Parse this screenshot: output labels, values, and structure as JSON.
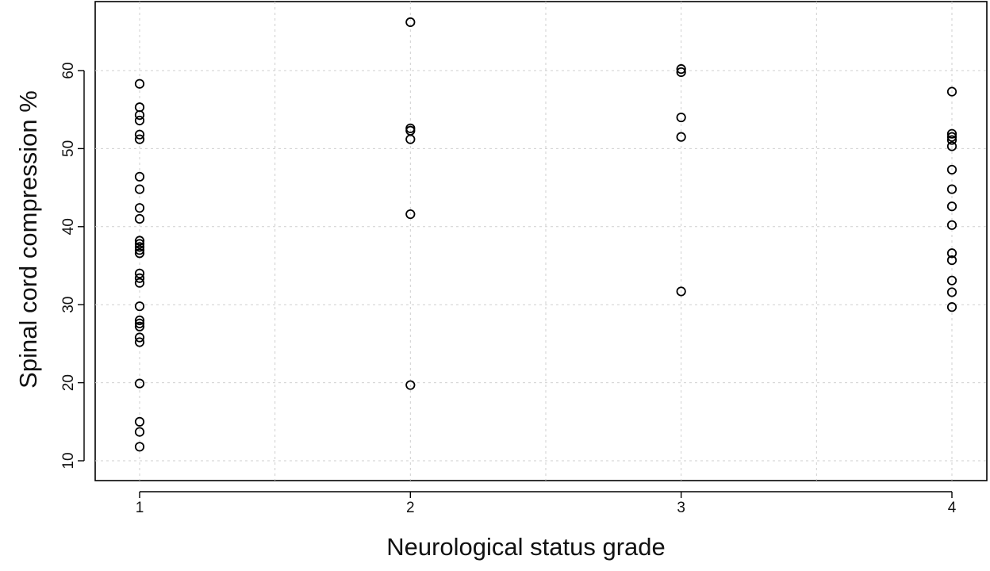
{
  "chart_data": {
    "type": "scatter",
    "title": "",
    "xlabel": "Neurological status grade",
    "ylabel": "Spinal cord compression %",
    "xlim": [
      0.8,
      4.2
    ],
    "ylim": [
      10,
      68
    ],
    "x_ticks": [
      1,
      2,
      3,
      4
    ],
    "y_ticks": [
      10,
      20,
      30,
      40,
      50,
      60
    ],
    "grid": true,
    "series": [
      {
        "points": [
          [
            1,
            58.3
          ],
          [
            1,
            55.3
          ],
          [
            1,
            54.3
          ],
          [
            1,
            53.6
          ],
          [
            1,
            51.8
          ],
          [
            1,
            51.2
          ],
          [
            1,
            46.4
          ],
          [
            1,
            44.8
          ],
          [
            1,
            42.4
          ],
          [
            1,
            41.0
          ],
          [
            1,
            38.2
          ],
          [
            1,
            37.8
          ],
          [
            1,
            37.4
          ],
          [
            1,
            37.0
          ],
          [
            1,
            36.6
          ],
          [
            1,
            34.0
          ],
          [
            1,
            33.4
          ],
          [
            1,
            32.8
          ],
          [
            1,
            29.8
          ],
          [
            1,
            28.0
          ],
          [
            1,
            27.6
          ],
          [
            1,
            27.2
          ],
          [
            1,
            25.8
          ],
          [
            1,
            25.2
          ],
          [
            1,
            19.9
          ],
          [
            1,
            15.0
          ],
          [
            1,
            13.7
          ],
          [
            1,
            11.8
          ],
          [
            2,
            66.2
          ],
          [
            2,
            52.6
          ],
          [
            2,
            52.3
          ],
          [
            2,
            51.2
          ],
          [
            2,
            41.6
          ],
          [
            2,
            19.7
          ],
          [
            3,
            60.2
          ],
          [
            3,
            59.8
          ],
          [
            3,
            54.0
          ],
          [
            3,
            51.5
          ],
          [
            3,
            31.7
          ],
          [
            4,
            57.3
          ],
          [
            4,
            51.9
          ],
          [
            4,
            51.5
          ],
          [
            4,
            51.1
          ],
          [
            4,
            50.3
          ],
          [
            4,
            47.3
          ],
          [
            4,
            44.8
          ],
          [
            4,
            42.6
          ],
          [
            4,
            40.2
          ],
          [
            4,
            36.6
          ],
          [
            4,
            35.7
          ],
          [
            4,
            33.1
          ],
          [
            4,
            31.6
          ],
          [
            4,
            29.7
          ]
        ]
      }
    ]
  }
}
